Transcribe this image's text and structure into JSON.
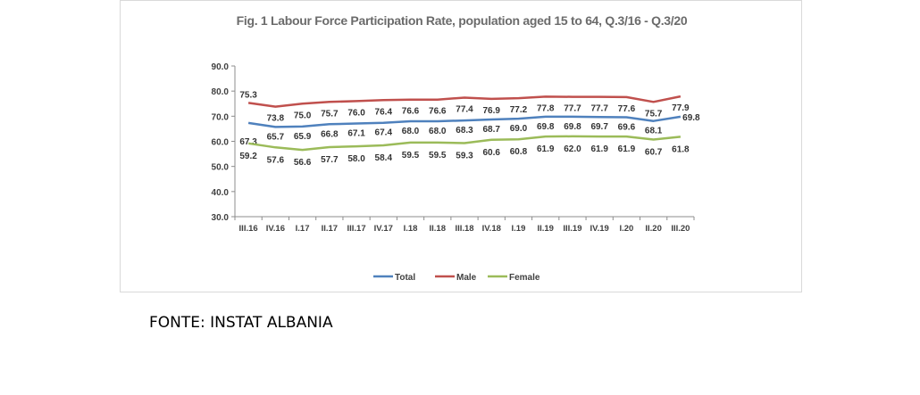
{
  "source": "FONTE: INSTAT ALBANIA",
  "chart_data": {
    "type": "line",
    "title": "Fig. 1 Labour Force Participation Rate, population aged 15 to 64, Q.3/16 - Q.3/20",
    "categories": [
      "III.16",
      "IV.16",
      "I.17",
      "II.17",
      "III.17",
      "IV.17",
      "I.18",
      "II.18",
      "III.18",
      "IV.18",
      "I.19",
      "II.19",
      "III.19",
      "IV.19",
      "I.20",
      "II.20",
      "III.20"
    ],
    "yticks": [
      "90.0",
      "80.0",
      "70.0",
      "60.0",
      "50.0",
      "40.0",
      "30.0"
    ],
    "ylim": [
      30,
      90
    ],
    "legend_position": "bottom",
    "series": [
      {
        "name": "Total",
        "color": "#4f81bd",
        "values": [
          67.3,
          65.7,
          65.9,
          66.8,
          67.1,
          67.4,
          68.0,
          68.0,
          68.3,
          68.7,
          69.0,
          69.8,
          69.8,
          69.7,
          69.6,
          68.1,
          69.8
        ],
        "labels": [
          "67.3",
          "65.7",
          "65.9",
          "66.8",
          "67.1",
          "67.4",
          "68.0",
          "68.0",
          "68.3",
          "68.7",
          "69.0",
          "69.8",
          "69.8",
          "69.7",
          "69.6",
          "68.1",
          "69.8"
        ]
      },
      {
        "name": "Male",
        "color": "#c0504d",
        "values": [
          75.3,
          73.8,
          75.0,
          75.7,
          76.0,
          76.4,
          76.6,
          76.6,
          77.4,
          76.9,
          77.2,
          77.8,
          77.7,
          77.7,
          77.6,
          75.7,
          77.9
        ],
        "labels": [
          "75.3",
          "73.8",
          "75.0",
          "75.7",
          "76.0",
          "76.4",
          "76.6",
          "76.6",
          "77.4",
          "76.9",
          "77.2",
          "77.8",
          "77.7",
          "77.7",
          "77.6",
          "75.7",
          "77.9"
        ]
      },
      {
        "name": "Female",
        "color": "#9bbb59",
        "values": [
          59.2,
          57.6,
          56.6,
          57.7,
          58.0,
          58.4,
          59.5,
          59.5,
          59.3,
          60.6,
          60.8,
          61.9,
          62.0,
          61.9,
          61.9,
          60.7,
          61.8
        ],
        "labels": [
          "59.2",
          "57.6",
          "56.6",
          "57.7",
          "58.0",
          "58.4",
          "59.5",
          "59.5",
          "59.3",
          "60.6",
          "60.8",
          "61.9",
          "62.0",
          "61.9",
          "61.9",
          "60.7",
          "61.8"
        ]
      }
    ]
  }
}
